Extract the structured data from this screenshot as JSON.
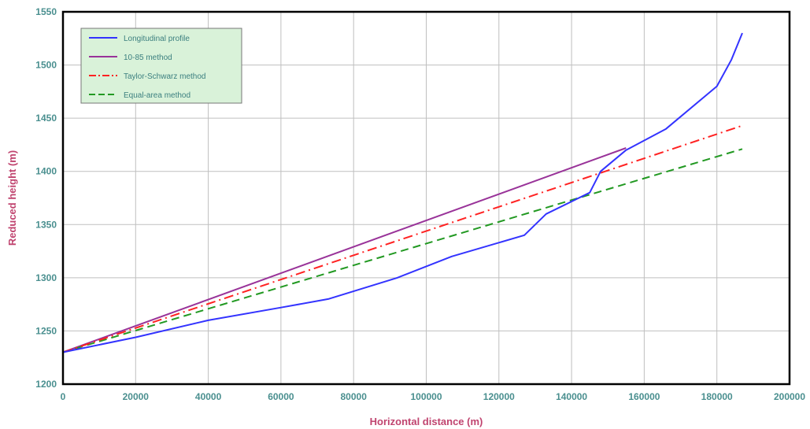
{
  "chart_data": {
    "type": "line",
    "xlabel": "Horizontal distance (m)",
    "ylabel": "Reduced height (m)",
    "xlim": [
      0,
      200000
    ],
    "ylim": [
      1200,
      1550
    ],
    "x_ticks": [
      0,
      20000,
      40000,
      60000,
      80000,
      100000,
      120000,
      140000,
      160000,
      180000,
      200000
    ],
    "y_ticks": [
      1200,
      1250,
      1300,
      1350,
      1400,
      1450,
      1500,
      1550
    ],
    "x_tick_labels": [
      "0",
      "20000",
      "40000",
      "60000",
      "80000",
      "100000",
      "120000",
      "140000",
      "160000",
      "180000",
      "200000"
    ],
    "y_tick_labels": [
      "1200",
      "1250",
      "1300",
      "1350",
      "1400",
      "1450",
      "1500",
      "1550"
    ],
    "grid": true,
    "legend_position": "top-left",
    "plot_background": "#ffffff",
    "legend_background": "#d9f2d9",
    "series": [
      {
        "name": "Longitudinal profile",
        "color": "#3333ff",
        "dash": "solid",
        "x": [
          0,
          20000,
          40000,
          60000,
          73000,
          92000,
          107000,
          127000,
          133000,
          145000,
          148000,
          155000,
          166000,
          180000,
          184000,
          187000
        ],
        "y": [
          1230,
          1244,
          1260,
          1272,
          1280,
          1300,
          1320,
          1340,
          1360,
          1380,
          1400,
          1420,
          1440,
          1480,
          1505,
          1530
        ]
      },
      {
        "name": "10-85 method",
        "color": "#993399",
        "dash": "solid",
        "x": [
          0,
          155000
        ],
        "y": [
          1230,
          1422
        ]
      },
      {
        "name": "Taylor-Schwarz method",
        "color": "#ff2222",
        "dash": "dashdot",
        "x": [
          0,
          187000
        ],
        "y": [
          1230,
          1443
        ]
      },
      {
        "name": "Equal-area method",
        "color": "#229922",
        "dash": "dashed",
        "x": [
          0,
          187000
        ],
        "y": [
          1230,
          1421
        ]
      }
    ]
  }
}
